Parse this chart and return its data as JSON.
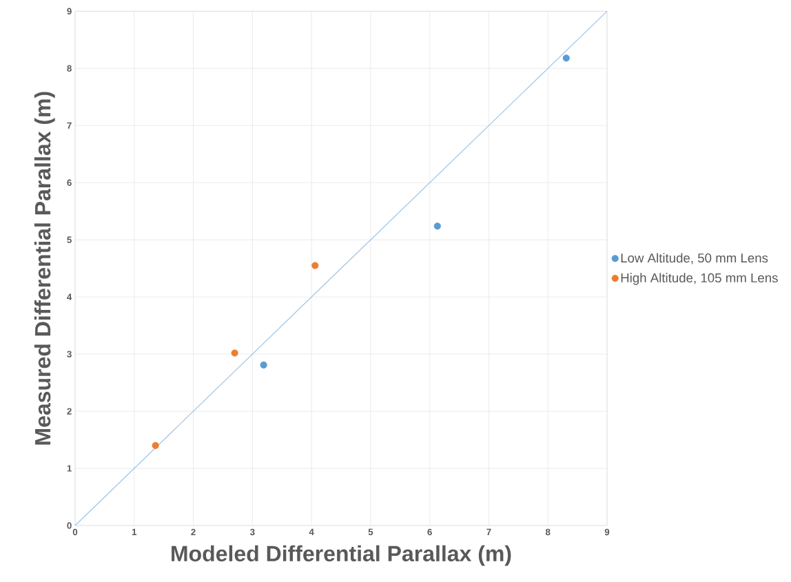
{
  "chart_data": {
    "type": "scatter",
    "xlabel": "Modeled Differential Parallax (m)",
    "ylabel": "Measured Differential Parallax (m)",
    "xlim": [
      0,
      9
    ],
    "ylim": [
      0,
      9
    ],
    "xticks": [
      0,
      1,
      2,
      3,
      4,
      5,
      6,
      7,
      8,
      9
    ],
    "yticks": [
      0,
      1,
      2,
      3,
      4,
      5,
      6,
      7,
      8,
      9
    ],
    "grid": true,
    "legend": "right",
    "marker": "circle",
    "series": [
      {
        "name": "Low Altitude, 50 mm Lens",
        "color": "#5b9bd5",
        "x": [
          8.31,
          6.13,
          3.19
        ],
        "values": [
          8.18,
          5.24,
          2.81
        ]
      },
      {
        "name": "High Altitude, 105 mm Lens",
        "color": "#ed7d31",
        "x": [
          1.36,
          2.7,
          4.06
        ],
        "values": [
          1.4,
          3.02,
          4.55
        ]
      },
      {
        "type": "line",
        "color": "#9dc3e6",
        "x": [
          0,
          9
        ],
        "values": [
          0,
          9
        ],
        "marker": "none"
      }
    ]
  }
}
